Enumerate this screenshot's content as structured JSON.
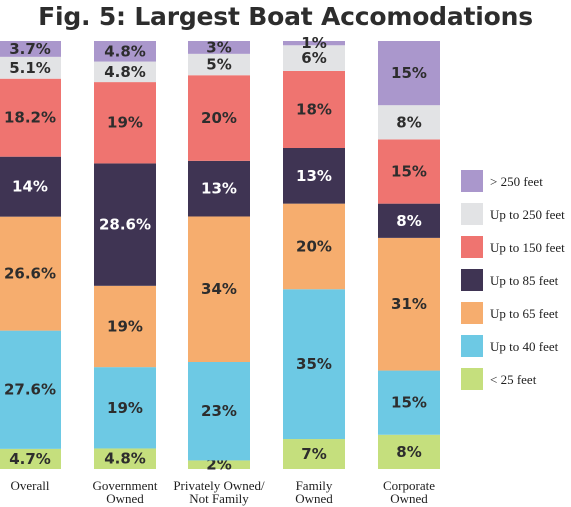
{
  "title": "Fig. 5: Largest Boat Accomodations",
  "chart_data": {
    "type": "bar",
    "stacked": true,
    "normalized": true,
    "title": "Fig. 5: Largest Boat Accomodations",
    "xlabel": "",
    "ylabel": "",
    "ylim": [
      0,
      100
    ],
    "grid": false,
    "legend_position": "right",
    "categories": [
      [
        "Overall"
      ],
      [
        "Government",
        "Owned"
      ],
      [
        "Privately Owned/",
        "Not Family"
      ],
      [
        "Family",
        "Owned"
      ],
      [
        "Corporate",
        "Owned"
      ]
    ],
    "series": [
      {
        "name": "< 25 feet",
        "color": "#c5df7d",
        "label_color": "#2d2d2d",
        "values": [
          4.7,
          4.8,
          2,
          7,
          8
        ]
      },
      {
        "name": "Up to 40 feet",
        "color": "#6dc9e4",
        "label_color": "#2d2d2d",
        "values": [
          27.6,
          19,
          23,
          35,
          15
        ]
      },
      {
        "name": "Up to 65 feet",
        "color": "#f6ad6e",
        "label_color": "#2d2d2d",
        "values": [
          26.6,
          19,
          34,
          20,
          31
        ]
      },
      {
        "name": "Up to 85 feet",
        "color": "#3f3453",
        "label_color": "#ffffff",
        "values": [
          14,
          28.6,
          13,
          13,
          8
        ]
      },
      {
        "name": "Up to 150 feet",
        "color": "#ef7470",
        "label_color": "#2d2d2d",
        "values": [
          18.2,
          19,
          20,
          18,
          15
        ]
      },
      {
        "name": "Up to 250 feet",
        "color": "#e2e3e5",
        "label_color": "#2d2d2d",
        "values": [
          5.1,
          4.8,
          5,
          6,
          8
        ]
      },
      {
        "name": "> 250 feet",
        "color": "#aa97cc",
        "label_color": "#2d2d2d",
        "values": [
          3.7,
          4.8,
          3,
          1,
          15
        ]
      }
    ],
    "data_labels": [
      [
        "4.7%",
        "4.8%",
        "2%",
        "7%",
        "8%"
      ],
      [
        "27.6%",
        "19%",
        "23%",
        "35%",
        "15%"
      ],
      [
        "26.6%",
        "19%",
        "34%",
        "20%",
        "31%"
      ],
      [
        "14%",
        "28.6%",
        "13%",
        "13%",
        "8%"
      ],
      [
        "18.2%",
        "19%",
        "20%",
        "18%",
        "15%"
      ],
      [
        "5.1%",
        "4.8%",
        "5%",
        "6%",
        "8%"
      ],
      [
        "3.7%",
        "4.8%",
        "3%",
        "1%",
        "15%"
      ]
    ]
  }
}
